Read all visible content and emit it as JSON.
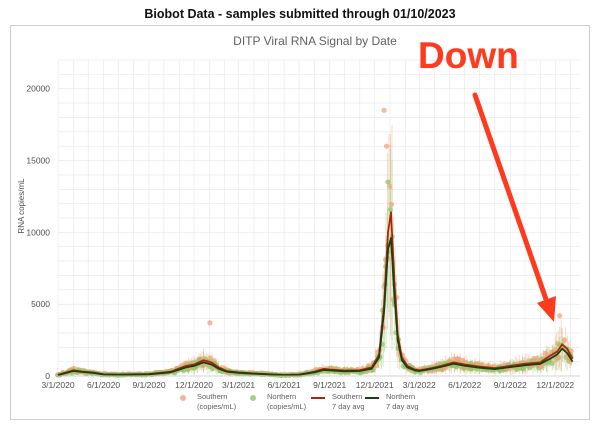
{
  "page_title": "Biobot Data - samples submitted through 01/10/2023",
  "annotation": {
    "text": "Down",
    "color": "#ff3b1f"
  },
  "colors": {
    "southern_points": "#f2a27a",
    "northern_points": "#8fc66a",
    "southern_avg": "#a8260c",
    "northern_avg": "#1b3f12",
    "grid": "#e6e6e6"
  },
  "chart_data": {
    "type": "scatter",
    "title": "DITP Viral RNA Signal by Date",
    "xlabel": "",
    "ylabel": "RNA copies/mL",
    "ylim": [
      0,
      22000
    ],
    "yticks": [
      0,
      5000,
      10000,
      15000,
      20000
    ],
    "xlim": [
      "3/1/2020",
      "1/20/2023"
    ],
    "xticks": [
      "3/1/2020",
      "6/1/2020",
      "9/1/2020",
      "12/1/2020",
      "3/1/2021",
      "6/1/2021",
      "9/1/2021",
      "12/1/2021",
      "3/1/2022",
      "6/1/2022",
      "9/1/2022",
      "12/1/2022"
    ],
    "grid": true,
    "legend_position": "bottom",
    "legend": [
      {
        "label_line1": "Southern",
        "label_line2": "(copies/mL)",
        "kind": "marker",
        "color": "#f2a27a"
      },
      {
        "label_line1": "Northern",
        "label_line2": "(copies/mL)",
        "kind": "marker",
        "color": "#8fc66a"
      },
      {
        "label_line1": "Southern",
        "label_line2": "7 day avg",
        "kind": "line",
        "color": "#a8260c"
      },
      {
        "label_line1": "Northern",
        "label_line2": "7 day avg",
        "kind": "line",
        "color": "#1b3f12"
      }
    ],
    "series": [
      {
        "name": "Southern 7 day avg",
        "x": [
          "3/1/2020",
          "4/1/2020",
          "4/20/2020",
          "5/10/2020",
          "6/1/2020",
          "7/1/2020",
          "9/1/2020",
          "10/15/2020",
          "11/15/2020",
          "12/1/2020",
          "12/20/2020",
          "1/5/2021",
          "1/20/2021",
          "2/5/2021",
          "3/1/2021",
          "4/1/2021",
          "5/1/2021",
          "6/1/2021",
          "7/1/2021",
          "8/1/2021",
          "8/20/2021",
          "9/1/2021",
          "10/1/2021",
          "11/1/2021",
          "11/25/2021",
          "12/10/2021",
          "12/20/2021",
          "12/28/2021",
          "1/3/2022",
          "1/10/2022",
          "1/17/2022",
          "1/25/2022",
          "2/5/2022",
          "2/20/2022",
          "3/1/2022",
          "3/20/2022",
          "4/15/2022",
          "5/10/2022",
          "6/1/2022",
          "7/1/2022",
          "8/1/2022",
          "9/1/2022",
          "10/1/2022",
          "11/1/2022",
          "11/20/2022",
          "12/5/2022",
          "12/15/2022",
          "12/25/2022",
          "1/5/2023"
        ],
        "y": [
          80,
          400,
          300,
          250,
          120,
          100,
          140,
          300,
          700,
          800,
          1100,
          950,
          600,
          350,
          250,
          180,
          120,
          80,
          100,
          300,
          500,
          450,
          380,
          400,
          600,
          1500,
          5000,
          10000,
          11400,
          6500,
          2800,
          1300,
          700,
          450,
          400,
          500,
          700,
          950,
          800,
          650,
          550,
          700,
          850,
          950,
          1400,
          1700,
          2200,
          1900,
          1200
        ]
      },
      {
        "name": "Northern 7 day avg",
        "x": [
          "3/1/2020",
          "4/1/2020",
          "4/20/2020",
          "5/10/2020",
          "6/1/2020",
          "7/1/2020",
          "9/1/2020",
          "10/15/2020",
          "11/15/2020",
          "12/1/2020",
          "12/20/2020",
          "1/5/2021",
          "1/20/2021",
          "2/5/2021",
          "3/1/2021",
          "4/1/2021",
          "5/1/2021",
          "6/1/2021",
          "7/1/2021",
          "8/1/2021",
          "8/20/2021",
          "9/1/2021",
          "10/1/2021",
          "11/1/2021",
          "11/25/2021",
          "12/10/2021",
          "12/20/2021",
          "12/28/2021",
          "1/3/2022",
          "1/10/2022",
          "1/17/2022",
          "1/25/2022",
          "2/5/2022",
          "2/20/2022",
          "3/1/2022",
          "3/20/2022",
          "4/15/2022",
          "5/10/2022",
          "6/1/2022",
          "7/1/2022",
          "8/1/2022",
          "9/1/2022",
          "10/1/2022",
          "11/1/2022",
          "11/20/2022",
          "12/5/2022",
          "12/15/2022",
          "12/25/2022",
          "1/5/2023"
        ],
        "y": [
          60,
          350,
          280,
          220,
          110,
          90,
          120,
          260,
          600,
          700,
          950,
          800,
          500,
          300,
          220,
          160,
          110,
          70,
          90,
          250,
          420,
          400,
          330,
          350,
          500,
          1300,
          4500,
          8800,
          9600,
          5500,
          2400,
          1100,
          600,
          400,
          350,
          450,
          650,
          850,
          720,
          580,
          480,
          620,
          750,
          850,
          1200,
          1500,
          1900,
          1600,
          1000
        ]
      }
    ]
  }
}
